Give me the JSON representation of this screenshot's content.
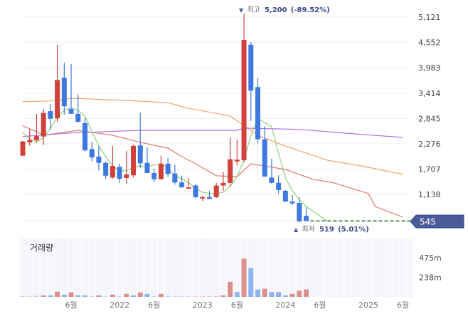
{
  "chart_data": {
    "type": "candlestick",
    "price_axis": {
      "ticks": [
        "5,121",
        "4,552",
        "3,983",
        "3,414",
        "2,845",
        "2,276",
        "1,707",
        "1,138"
      ],
      "tick_values": [
        5121,
        4552,
        3983,
        3414,
        2845,
        2276,
        1707,
        1138
      ],
      "range": [
        545,
        5121
      ]
    },
    "last_price": {
      "label": "545",
      "value": 545
    },
    "high_annotation": {
      "marker": "▼",
      "label": "최고",
      "value": "5,200",
      "change": "(-89.52%)",
      "date": "2023-07",
      "price": 5200
    },
    "low_annotation": {
      "marker": "▲",
      "label": "최저",
      "value": "519",
      "change": "(5.01%)",
      "date": "2024-03",
      "price": 519
    },
    "candles": {
      "dates": [
        "2020-11",
        "2020-12",
        "2021-01",
        "2021-02",
        "2021-03",
        "2021-04",
        "2021-05",
        "2021-06",
        "2021-07",
        "2021-08",
        "2021-09",
        "2021-10",
        "2021-11",
        "2021-12",
        "2022-01",
        "2022-02",
        "2022-03",
        "2022-04",
        "2022-05",
        "2022-06",
        "2022-07",
        "2022-08",
        "2022-09",
        "2022-10",
        "2022-11",
        "2022-12",
        "2023-01",
        "2023-02",
        "2023-03",
        "2023-04",
        "2023-05",
        "2023-06",
        "2023-07",
        "2023-08",
        "2023-09",
        "2023-10",
        "2023-11",
        "2023-12",
        "2024-01",
        "2024-02",
        "2024-03",
        "2024-04"
      ],
      "ohlc": [
        [
          2010,
          2340,
          2000,
          2330
        ],
        [
          2310,
          2600,
          2240,
          2360
        ],
        [
          2360,
          2950,
          2310,
          2450
        ],
        [
          2440,
          3060,
          2250,
          2970
        ],
        [
          3010,
          3170,
          2600,
          2840
        ],
        [
          2850,
          4500,
          2770,
          3710
        ],
        [
          3760,
          4100,
          2930,
          3120
        ],
        [
          3060,
          4070,
          2950,
          2950
        ],
        [
          2950,
          3380,
          2760,
          2770
        ],
        [
          2740,
          2850,
          2100,
          2130
        ],
        [
          2160,
          2320,
          1890,
          1970
        ],
        [
          1990,
          2230,
          1680,
          1850
        ],
        [
          1850,
          1880,
          1490,
          1560
        ],
        [
          1520,
          2230,
          1490,
          1780
        ],
        [
          1760,
          1830,
          1400,
          1490
        ],
        [
          1510,
          2120,
          1380,
          1590
        ],
        [
          1570,
          2260,
          1520,
          2230
        ],
        [
          2240,
          2980,
          1730,
          1840
        ],
        [
          1850,
          2200,
          1620,
          1620
        ],
        [
          1620,
          1720,
          1420,
          1480
        ],
        [
          1480,
          2010,
          1480,
          1830
        ],
        [
          1830,
          1960,
          1540,
          1600
        ],
        [
          1610,
          1810,
          1360,
          1410
        ],
        [
          1410,
          1560,
          1290,
          1300
        ],
        [
          1270,
          1510,
          1270,
          1300
        ],
        [
          1340,
          1380,
          1060,
          1080
        ],
        [
          1050,
          1100,
          1000,
          1080
        ],
        [
          1080,
          1220,
          1040,
          1040
        ],
        [
          1080,
          1400,
          1060,
          1340
        ],
        [
          1340,
          1650,
          1220,
          1400
        ],
        [
          1400,
          2420,
          1320,
          1930
        ],
        [
          1880,
          2370,
          1790,
          1920
        ],
        [
          1910,
          5200,
          1860,
          4610
        ],
        [
          4500,
          4560,
          2790,
          3470
        ],
        [
          3550,
          3750,
          2290,
          2380
        ],
        [
          2380,
          2670,
          1540,
          1540
        ],
        [
          1520,
          1940,
          1390,
          1400
        ],
        [
          1400,
          1570,
          1160,
          1240
        ],
        [
          1220,
          1240,
          980,
          980
        ],
        [
          980,
          1130,
          900,
          940
        ],
        [
          950,
          1080,
          519,
          535
        ],
        [
          660,
          850,
          545,
          545
        ]
      ],
      "up_color": "#d0413b",
      "down_color": "#3f78e0"
    },
    "lines": [
      {
        "color": "#8fd07a",
        "points": [
          [
            "2020-11",
            2530
          ],
          [
            "2020-12",
            2390
          ],
          [
            "2021-01",
            2310
          ],
          [
            "2021-02",
            2420
          ],
          [
            "2021-03",
            2630
          ],
          [
            "2021-04",
            2870
          ],
          [
            "2021-05",
            3030
          ],
          [
            "2021-06",
            3090
          ],
          [
            "2021-07",
            3030
          ],
          [
            "2021-08",
            2900
          ],
          [
            "2021-09",
            2550
          ],
          [
            "2021-10",
            2230
          ],
          [
            "2021-11",
            1990
          ],
          [
            "2021-12",
            1780
          ],
          [
            "2022-01",
            1670
          ],
          [
            "2022-02",
            1670
          ],
          [
            "2022-03",
            1750
          ],
          [
            "2022-04",
            1780
          ],
          [
            "2022-05",
            1760
          ],
          [
            "2022-06",
            1800
          ],
          [
            "2022-07",
            1830
          ],
          [
            "2022-08",
            1730
          ],
          [
            "2022-09",
            1570
          ],
          [
            "2022-10",
            1490
          ],
          [
            "2022-11",
            1400
          ],
          [
            "2022-12",
            1270
          ],
          [
            "2023-01",
            1190
          ],
          [
            "2023-02",
            1160
          ],
          [
            "2023-03",
            1160
          ],
          [
            "2023-04",
            1190
          ],
          [
            "2023-05",
            1320
          ],
          [
            "2023-06",
            1540
          ],
          [
            "2023-07",
            1910
          ],
          [
            "2023-08",
            2470
          ],
          [
            "2023-09",
            2850
          ],
          [
            "2023-10",
            2750
          ],
          [
            "2023-11",
            2660
          ],
          [
            "2023-12",
            2070
          ],
          [
            "2024-01",
            1510
          ],
          [
            "2024-02",
            1220
          ],
          [
            "2024-03",
            1030
          ],
          [
            "2024-04",
            870
          ],
          [
            "2024-07",
            545
          ]
        ]
      },
      {
        "color": "#e07a72",
        "points": [
          [
            "2020-11",
            2680
          ],
          [
            "2021-01",
            2550
          ],
          [
            "2021-02",
            2470
          ],
          [
            "2021-07",
            2580
          ],
          [
            "2021-12",
            2470
          ],
          [
            "2022-04",
            2310
          ],
          [
            "2022-08",
            2180
          ],
          [
            "2022-10",
            1990
          ],
          [
            "2022-12",
            1830
          ],
          [
            "2023-03",
            1560
          ],
          [
            "2023-06",
            1540
          ],
          [
            "2023-08",
            1830
          ],
          [
            "2024-01",
            1700
          ],
          [
            "2024-05",
            1480
          ],
          [
            "2024-08",
            1400
          ],
          [
            "2025-01",
            1160
          ],
          [
            "2025-02",
            870
          ],
          [
            "2025-06",
            630
          ]
        ]
      },
      {
        "color": "#eea66f",
        "points": [
          [
            "2020-11",
            3220
          ],
          [
            "2021-03",
            3240
          ],
          [
            "2021-06",
            3300
          ],
          [
            "2022-02",
            3250
          ],
          [
            "2022-08",
            3200
          ],
          [
            "2022-11",
            3070
          ],
          [
            "2023-03",
            2960
          ],
          [
            "2023-05",
            2900
          ],
          [
            "2023-06",
            2790
          ],
          [
            "2023-09",
            2470
          ],
          [
            "2023-12",
            2280
          ],
          [
            "2024-04",
            2070
          ],
          [
            "2024-07",
            1910
          ],
          [
            "2024-12",
            1780
          ],
          [
            "2025-06",
            1590
          ]
        ]
      },
      {
        "color": "#a576e8",
        "points": [
          [
            "2020-11",
            2440
          ],
          [
            "2021-06",
            2520
          ],
          [
            "2022-04",
            2580
          ],
          [
            "2023-06",
            2580
          ],
          [
            "2023-07",
            2630
          ],
          [
            "2024-03",
            2600
          ],
          [
            "2024-11",
            2500
          ],
          [
            "2025-06",
            2420
          ]
        ]
      }
    ],
    "volume": {
      "title": "거래량",
      "ticks": [
        "475m",
        "238m"
      ],
      "tick_values": [
        475,
        238
      ],
      "values_m": [
        10,
        10,
        14,
        20,
        19,
        62,
        28,
        54,
        20,
        19,
        10,
        20,
        10,
        28,
        10,
        37,
        20,
        54,
        37,
        10,
        37,
        11,
        9,
        8,
        8,
        7,
        8,
        9,
        11,
        20,
        183,
        59,
        465,
        350,
        90,
        99,
        59,
        59,
        20,
        37,
        76,
        90
      ],
      "up_color": "#dc8f8c",
      "down_color": "#8fb4f0"
    },
    "x_axis": {
      "ticks": [
        [
          "2021-06",
          "6월"
        ],
        [
          "2022-01",
          "2022"
        ],
        [
          "2022-06",
          "6월"
        ],
        [
          "2023-01",
          "2023"
        ],
        [
          "2023-06",
          "6월"
        ],
        [
          "2024-01",
          "2024"
        ],
        [
          "2024-06",
          "6월"
        ],
        [
          "2025-01",
          "2025"
        ],
        [
          "2025-06",
          "6월"
        ]
      ],
      "range": [
        "2020-11",
        "2025-07"
      ]
    }
  }
}
